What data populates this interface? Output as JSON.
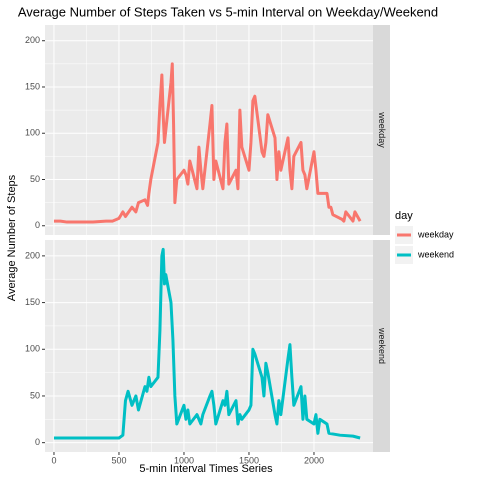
{
  "chart_data": {
    "type": "line",
    "title": "Average Number of Steps Taken vs 5-min Interval on Weekday/Weekend",
    "x_label": "5-min Interval Times Series",
    "y_label": "Average Number of Steps",
    "legend_title": "day",
    "facet": "rows",
    "xlim": [
      -69,
      2454
    ],
    "xticks": [
      0,
      500,
      1000,
      1500,
      2000
    ],
    "ylim": [
      -10,
      217
    ],
    "yticks": [
      0,
      50,
      100,
      150,
      200
    ],
    "grid": true,
    "series": [
      {
        "name": "weekday",
        "color": "#F8766D",
        "x": [
          0,
          50,
          100,
          200,
          300,
          400,
          450,
          500,
          530,
          550,
          600,
          630,
          650,
          700,
          720,
          730,
          745,
          800,
          815,
          830,
          840,
          850,
          900,
          910,
          920,
          930,
          945,
          1000,
          1015,
          1030,
          1045,
          1100,
          1115,
          1130,
          1145,
          1200,
          1215,
          1230,
          1245,
          1300,
          1315,
          1330,
          1345,
          1400,
          1415,
          1430,
          1445,
          1500,
          1515,
          1530,
          1545,
          1600,
          1615,
          1630,
          1645,
          1700,
          1715,
          1730,
          1745,
          1800,
          1815,
          1830,
          1845,
          1900,
          1915,
          1930,
          1945,
          2000,
          2015,
          2030,
          2045,
          2100,
          2115,
          2130,
          2145,
          2200,
          2215,
          2230,
          2245,
          2300,
          2315,
          2355
        ],
        "values": [
          5,
          5,
          4,
          4,
          4,
          5,
          5,
          8,
          15,
          10,
          20,
          15,
          25,
          28,
          22,
          35,
          50,
          90,
          130,
          163,
          120,
          90,
          155,
          175,
          110,
          25,
          50,
          60,
          55,
          45,
          70,
          40,
          85,
          60,
          40,
          110,
          130,
          50,
          70,
          40,
          90,
          110,
          45,
          60,
          40,
          125,
          85,
          60,
          90,
          135,
          140,
          80,
          75,
          90,
          120,
          95,
          50,
          80,
          60,
          95,
          60,
          40,
          75,
          90,
          60,
          55,
          40,
          80,
          60,
          35,
          35,
          35,
          20,
          20,
          12,
          8,
          7,
          5,
          15,
          5,
          15,
          5
        ]
      },
      {
        "name": "weekend",
        "color": "#00BFC4",
        "x": [
          0,
          100,
          200,
          300,
          400,
          500,
          530,
          550,
          570,
          600,
          630,
          650,
          700,
          715,
          730,
          745,
          800,
          815,
          830,
          840,
          850,
          860,
          900,
          915,
          930,
          945,
          1000,
          1015,
          1030,
          1045,
          1100,
          1130,
          1145,
          1200,
          1215,
          1230,
          1245,
          1300,
          1315,
          1330,
          1345,
          1400,
          1415,
          1430,
          1445,
          1500,
          1515,
          1530,
          1545,
          1600,
          1615,
          1630,
          1645,
          1700,
          1715,
          1730,
          1745,
          1800,
          1815,
          1830,
          1845,
          1900,
          1915,
          1930,
          1945,
          2000,
          2015,
          2030,
          2045,
          2100,
          2115,
          2200,
          2300,
          2355
        ],
        "values": [
          5,
          5,
          5,
          5,
          5,
          5,
          8,
          45,
          55,
          40,
          50,
          35,
          60,
          55,
          70,
          60,
          70,
          120,
          200,
          207,
          170,
          180,
          150,
          110,
          50,
          20,
          40,
          25,
          35,
          20,
          30,
          20,
          30,
          50,
          55,
          40,
          20,
          45,
          40,
          55,
          30,
          45,
          20,
          30,
          25,
          35,
          40,
          100,
          95,
          70,
          50,
          85,
          75,
          30,
          20,
          45,
          30,
          90,
          105,
          70,
          40,
          60,
          25,
          50,
          25,
          20,
          30,
          10,
          25,
          20,
          10,
          8,
          7,
          5
        ]
      }
    ]
  }
}
